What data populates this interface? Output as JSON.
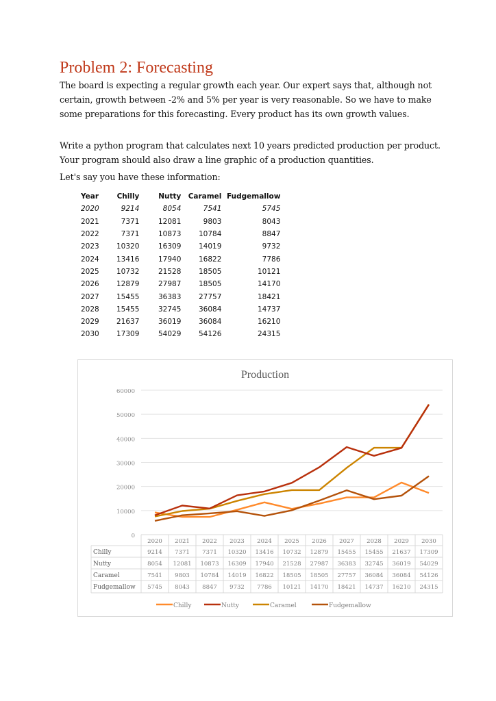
{
  "document": {
    "title": "Problem 2: Forecasting",
    "paragraphs": [
      "The board is expecting a regular growth each year. Our expert says that, although not certain, growth between -2% and 5% per year is very reasonable. So we have to make some preparations for this forecasting. Every product has its own growth values.",
      "Write a python program that calculates next 10 years predicted production per product. Your program should also draw a line graphic of a production quantities.",
      "Let's say you have these information:"
    ]
  },
  "table": {
    "headers": [
      "Year",
      "Chilly",
      "Nutty",
      "Caramel",
      "Fudgemallow"
    ],
    "rows": [
      [
        "2020",
        "9214",
        "8054",
        "7541",
        "5745"
      ],
      [
        "2021",
        "7371",
        "12081",
        "9803",
        "8043"
      ],
      [
        "2022",
        "7371",
        "10873",
        "10784",
        "8847"
      ],
      [
        "2023",
        "10320",
        "16309",
        "14019",
        "9732"
      ],
      [
        "2024",
        "13416",
        "17940",
        "16822",
        "7786"
      ],
      [
        "2025",
        "10732",
        "21528",
        "18505",
        "10121"
      ],
      [
        "2026",
        "12879",
        "27987",
        "18505",
        "14170"
      ],
      [
        "2027",
        "15455",
        "36383",
        "27757",
        "18421"
      ],
      [
        "2028",
        "15455",
        "32745",
        "36084",
        "14737"
      ],
      [
        "2029",
        "21637",
        "36019",
        "36084",
        "16210"
      ],
      [
        "2030",
        "17309",
        "54029",
        "54126",
        "24315"
      ]
    ]
  },
  "chart_data": {
    "type": "line",
    "title": "Production",
    "categories": [
      "2020",
      "2021",
      "2022",
      "2023",
      "2024",
      "2025",
      "2026",
      "2027",
      "2028",
      "2029",
      "2030"
    ],
    "ylim": [
      0,
      60000
    ],
    "yticks": [
      "0",
      "10000",
      "20000",
      "30000",
      "40000",
      "50000",
      "60000"
    ],
    "grid": true,
    "legend": "bottom",
    "data_table": true,
    "series": [
      {
        "name": "Chilly",
        "color": "#ff8a2b",
        "values": [
          9214,
          7371,
          7371,
          10320,
          13416,
          10732,
          12879,
          15455,
          15455,
          21637,
          17309
        ]
      },
      {
        "name": "Nutty",
        "color": "#b8300c",
        "values": [
          8054,
          12081,
          10873,
          16309,
          17940,
          21528,
          27987,
          36383,
          32745,
          36019,
          54029
        ]
      },
      {
        "name": "Caramel",
        "color": "#cc8400",
        "values": [
          7541,
          9803,
          10784,
          14019,
          16822,
          18505,
          18505,
          27757,
          36084,
          36084,
          54126
        ]
      },
      {
        "name": "Fudgemallow",
        "color": "#b4520a",
        "values": [
          5745,
          8043,
          8847,
          9732,
          7786,
          10121,
          14170,
          18421,
          14737,
          16210,
          24315
        ]
      }
    ]
  }
}
